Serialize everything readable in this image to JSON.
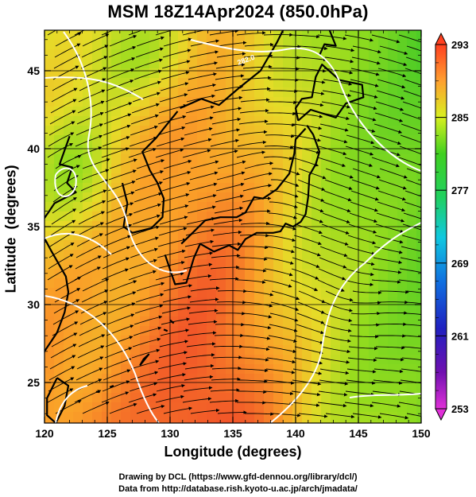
{
  "title": "MSM 18Z14Apr2024 (850.0hPa)",
  "xlabel": "Longitude (degrees)",
  "ylabel": "Latitude  (degrees)",
  "credits": [
    "Drawing by DCL (https://www.gfd-dennou.org/library/dcl/)",
    "Data from http://database.rish.kyoto-u.ac.jp/arch/jmadata/"
  ],
  "map": {
    "lon_range": [
      120,
      150
    ],
    "lat_range": [
      22.4,
      47.6
    ],
    "lon_ticks": [
      "120",
      "125",
      "130",
      "135",
      "140",
      "145",
      "150"
    ],
    "lat_ticks": [
      "25",
      "30",
      "35",
      "40",
      "45"
    ],
    "grid": true
  },
  "colorbar": {
    "min": 253,
    "max": 293,
    "labels": [
      "293",
      "285",
      "277",
      "269",
      "261",
      "253"
    ],
    "colors": [
      "#ff4020",
      "#ffa030",
      "#e8f020",
      "#30d020",
      "#10c8c0",
      "#2050e0",
      "#1010a0",
      "#e020e0"
    ]
  },
  "contour_labels": [
    "282.0"
  ]
}
